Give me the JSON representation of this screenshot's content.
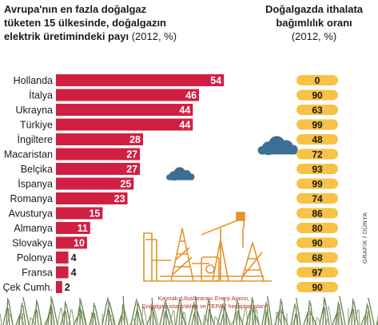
{
  "header": {
    "title_line1": "Avrupa'nın en fazla doğalgaz",
    "title_line2": "tüketen 15 ülkesinde, doğalgazın",
    "title_line3": "elektrik üretimindeki payı",
    "title_unit": "(2012, %)"
  },
  "side_header": {
    "title_line1": "Doğalgazda ithalata",
    "title_line2": "bağımlılık oranı",
    "title_unit": "(2012, %)"
  },
  "source": {
    "line1": "Kaynak: Uluslararası Enerji Ajansı,",
    "line2": "Doğalgaz istatistikleri ve TEPAV hesaplamaları"
  },
  "credit": "GRAFİK / DÜNYA",
  "colors": {
    "bar": "#d11f43",
    "pill": "#f7c245",
    "pill_text": "#1a1a1a",
    "cloud": "#3d6e93",
    "rig": "#e5932a",
    "grass": "#4f6b33"
  },
  "chart_data": [
    {
      "type": "bar",
      "orientation": "horizontal",
      "title": "Avrupa'nın en fazla doğalgaz tüketen 15 ülkesinde, doğalgazın elektrik üretimindeki payı (2012, %)",
      "categories": [
        "Hollanda",
        "İtalya",
        "Ukrayna",
        "Türkiye",
        "İngiltere",
        "Macaristan",
        "Belçika",
        "İspanya",
        "Romanya",
        "Avusturya",
        "Almanya",
        "Slovakya",
        "Polonya",
        "Fransa",
        "Çek Cumh."
      ],
      "values": [
        54,
        46,
        44,
        44,
        28,
        27,
        27,
        25,
        23,
        15,
        11,
        10,
        4,
        4,
        2
      ],
      "xlim": [
        0,
        56
      ],
      "grid": false,
      "legend": "none"
    },
    {
      "type": "table",
      "title": "Doğalgazda ithalata bağımlılık oranı (2012, %)",
      "categories": [
        "Hollanda",
        "İtalya",
        "Ukrayna",
        "Türkiye",
        "İngiltere",
        "Macaristan",
        "Belçika",
        "İspanya",
        "Romanya",
        "Avusturya",
        "Almanya",
        "Slovakya",
        "Polonya",
        "Fransa",
        "Çek Cumh."
      ],
      "values": [
        0,
        90,
        63,
        99,
        48,
        72,
        93,
        99,
        74,
        86,
        80,
        90,
        68,
        97,
        90
      ]
    }
  ]
}
